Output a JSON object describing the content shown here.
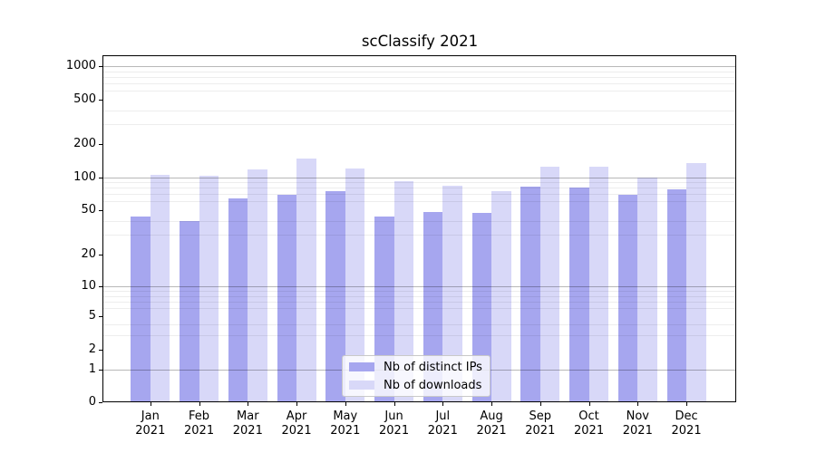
{
  "chart_data": {
    "type": "bar",
    "title": "scClassify 2021",
    "xlabel": "",
    "ylabel": "",
    "yscale": "symlog (linear 0-1, logarithmic above)",
    "ylim": [
      0,
      1300
    ],
    "yticks": [
      0,
      1,
      2,
      5,
      10,
      20,
      50,
      100,
      200,
      500,
      1000
    ],
    "grid": {
      "orientation": "horizontal",
      "major_values": [
        1,
        10,
        100,
        1000
      ],
      "minor_values": [
        3,
        4,
        6,
        7,
        8,
        9,
        30,
        40,
        60,
        70,
        80,
        90,
        300,
        400,
        600,
        700,
        800,
        900
      ]
    },
    "categories": [
      "Jan",
      "Feb",
      "Mar",
      "Apr",
      "May",
      "Jun",
      "Jul",
      "Aug",
      "Sep",
      "Oct",
      "Nov",
      "Dec"
    ],
    "year": "2021",
    "series": [
      {
        "name": "Nb of distinct IPs",
        "color": "#a6a6ef",
        "values": [
          44,
          40,
          64,
          69,
          74,
          44,
          48,
          47,
          82,
          80,
          69,
          78
        ]
      },
      {
        "name": "Nb of downloads",
        "color": "#d8d8f8",
        "values": [
          105,
          102,
          117,
          148,
          119,
          92,
          83,
          75,
          125,
          125,
          100,
          135
        ]
      }
    ],
    "legend_position": "inside lower-center"
  },
  "colors": {
    "background": "#ffffff",
    "spine": "#000000",
    "text": "#000000",
    "major_grid": "rgba(0,0,0,0.28)",
    "minor_grid": "rgba(0,0,0,0.07)",
    "legend_border": "#c9c9c9",
    "legend_bg": "rgba(255,255,255,0.8)"
  }
}
